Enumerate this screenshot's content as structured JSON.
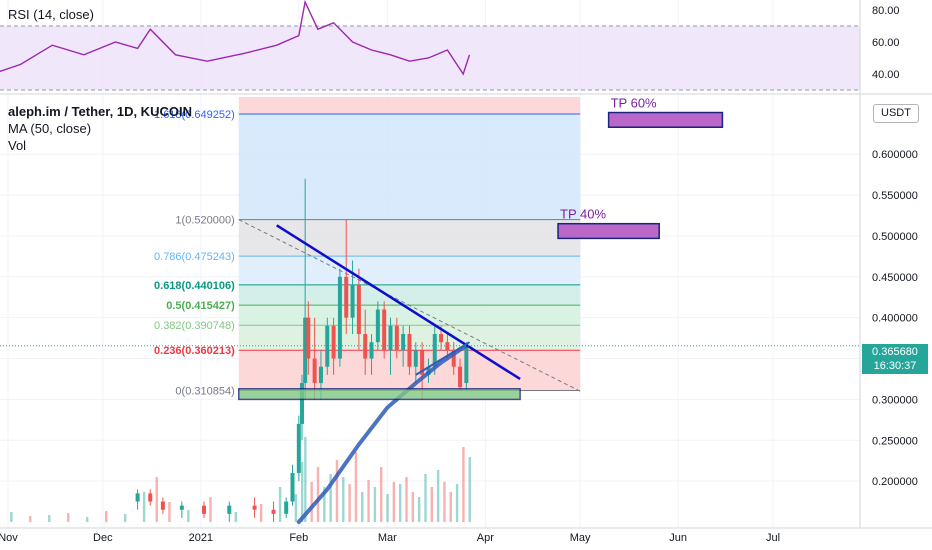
{
  "chart": {
    "symbol_title": "aleph.im / Tether, 1D, KUCOIN",
    "ma_label": "MA (50, close)",
    "vol_label": "Vol",
    "rsi_label": "RSI (14, close)",
    "currency": "USDT",
    "last_price": "0.365680",
    "countdown": "16:30:37",
    "colors": {
      "up": "#26a69a",
      "down": "#ef5350",
      "ma": "#2962ff",
      "rsi": "#9c27b0",
      "trendline": "#0d0dcc",
      "target_box": "#ba68c8",
      "support_box": "#81c784"
    }
  },
  "chart_data": [
    {
      "type": "line",
      "name": "RSI (14, close)",
      "ylim": [
        30,
        85
      ],
      "ticks": [
        80.0,
        60.0,
        40.0
      ],
      "tick_labels": [
        "80.00",
        "60.00",
        "40.00"
      ],
      "bands": [
        30,
        70
      ],
      "x_dates": [
        "2020-10-24",
        "2020-11-05",
        "2020-11-15",
        "2020-11-25",
        "2020-12-05",
        "2020-12-12",
        "2020-12-16",
        "2020-12-24",
        "2021-01-03",
        "2021-01-15",
        "2021-01-25",
        "2021-02-01",
        "2021-02-03",
        "2021-02-07",
        "2021-02-12",
        "2021-02-18",
        "2021-02-24",
        "2021-03-02",
        "2021-03-08",
        "2021-03-14",
        "2021-03-20",
        "2021-03-25",
        "2021-03-27"
      ],
      "values": [
        38,
        46,
        58,
        52,
        60,
        56,
        68,
        52,
        48,
        53,
        58,
        64,
        85,
        68,
        72,
        60,
        55,
        52,
        48,
        50,
        55,
        40,
        52
      ]
    },
    {
      "type": "candlestick",
      "name": "aleph.im / Tether, 1D, KUCOIN",
      "y_scale": "linear",
      "ylim": [
        0.15,
        0.67
      ],
      "y_ticks": [
        0.2,
        0.25,
        0.3,
        0.35,
        0.4,
        0.45,
        0.5,
        0.55,
        0.6
      ],
      "y_tick_labels": [
        "0.200000",
        "0.250000",
        "0.300000",
        "0.350000",
        "0.400000",
        "0.450000",
        "0.500000",
        "0.550000",
        "0.600000"
      ],
      "x_ticks": [
        "2020-11-01",
        "2020-12-01",
        "2021-01-01",
        "2021-02-01",
        "2021-03-01",
        "2021-04-01",
        "2021-05-01",
        "2021-06-01",
        "2021-07-01"
      ],
      "x_tick_labels": [
        "Nov",
        "Dec",
        "2021",
        "Feb",
        "Mar",
        "Apr",
        "May",
        "Jun",
        "Jul"
      ],
      "ohlc": [
        {
          "date": "2020-12-12",
          "o": 0.175,
          "h": 0.19,
          "l": 0.165,
          "c": 0.185
        },
        {
          "date": "2020-12-16",
          "o": 0.185,
          "h": 0.19,
          "l": 0.17,
          "c": 0.175
        },
        {
          "date": "2020-12-20",
          "o": 0.175,
          "h": 0.18,
          "l": 0.16,
          "c": 0.165
        },
        {
          "date": "2020-12-26",
          "o": 0.165,
          "h": 0.175,
          "l": 0.155,
          "c": 0.17
        },
        {
          "date": "2021-01-02",
          "o": 0.17,
          "h": 0.175,
          "l": 0.155,
          "c": 0.16
        },
        {
          "date": "2021-01-10",
          "o": 0.16,
          "h": 0.175,
          "l": 0.15,
          "c": 0.17
        },
        {
          "date": "2021-01-18",
          "o": 0.17,
          "h": 0.18,
          "l": 0.155,
          "c": 0.165
        },
        {
          "date": "2021-01-24",
          "o": 0.165,
          "h": 0.175,
          "l": 0.15,
          "c": 0.16
        },
        {
          "date": "2021-01-28",
          "o": 0.16,
          "h": 0.18,
          "l": 0.155,
          "c": 0.175
        },
        {
          "date": "2021-01-30",
          "o": 0.175,
          "h": 0.22,
          "l": 0.17,
          "c": 0.21
        },
        {
          "date": "2021-02-01",
          "o": 0.21,
          "h": 0.28,
          "l": 0.2,
          "c": 0.27
        },
        {
          "date": "2021-02-02",
          "o": 0.27,
          "h": 0.33,
          "l": 0.25,
          "c": 0.32
        },
        {
          "date": "2021-02-03",
          "o": 0.32,
          "h": 0.57,
          "l": 0.3,
          "c": 0.4
        },
        {
          "date": "2021-02-04",
          "o": 0.4,
          "h": 0.42,
          "l": 0.33,
          "c": 0.35
        },
        {
          "date": "2021-02-06",
          "o": 0.35,
          "h": 0.4,
          "l": 0.3,
          "c": 0.32
        },
        {
          "date": "2021-02-08",
          "o": 0.32,
          "h": 0.36,
          "l": 0.3,
          "c": 0.34
        },
        {
          "date": "2021-02-10",
          "o": 0.34,
          "h": 0.4,
          "l": 0.33,
          "c": 0.39
        },
        {
          "date": "2021-02-12",
          "o": 0.39,
          "h": 0.4,
          "l": 0.33,
          "c": 0.35
        },
        {
          "date": "2021-02-14",
          "o": 0.35,
          "h": 0.46,
          "l": 0.34,
          "c": 0.45
        },
        {
          "date": "2021-02-16",
          "o": 0.45,
          "h": 0.52,
          "l": 0.38,
          "c": 0.4
        },
        {
          "date": "2021-02-18",
          "o": 0.4,
          "h": 0.47,
          "l": 0.38,
          "c": 0.44
        },
        {
          "date": "2021-02-20",
          "o": 0.44,
          "h": 0.46,
          "l": 0.36,
          "c": 0.38
        },
        {
          "date": "2021-02-22",
          "o": 0.38,
          "h": 0.41,
          "l": 0.33,
          "c": 0.35
        },
        {
          "date": "2021-02-24",
          "o": 0.35,
          "h": 0.38,
          "l": 0.33,
          "c": 0.37
        },
        {
          "date": "2021-02-26",
          "o": 0.37,
          "h": 0.42,
          "l": 0.36,
          "c": 0.41
        },
        {
          "date": "2021-02-28",
          "o": 0.41,
          "h": 0.42,
          "l": 0.35,
          "c": 0.36
        },
        {
          "date": "2021-03-02",
          "o": 0.36,
          "h": 0.4,
          "l": 0.33,
          "c": 0.39
        },
        {
          "date": "2021-03-04",
          "o": 0.39,
          "h": 0.4,
          "l": 0.35,
          "c": 0.36
        },
        {
          "date": "2021-03-06",
          "o": 0.36,
          "h": 0.39,
          "l": 0.34,
          "c": 0.38
        },
        {
          "date": "2021-03-08",
          "o": 0.38,
          "h": 0.39,
          "l": 0.33,
          "c": 0.34
        },
        {
          "date": "2021-03-10",
          "o": 0.34,
          "h": 0.37,
          "l": 0.32,
          "c": 0.36
        },
        {
          "date": "2021-03-12",
          "o": 0.36,
          "h": 0.37,
          "l": 0.3,
          "c": 0.33
        },
        {
          "date": "2021-03-14",
          "o": 0.33,
          "h": 0.35,
          "l": 0.32,
          "c": 0.34
        },
        {
          "date": "2021-03-16",
          "o": 0.34,
          "h": 0.39,
          "l": 0.33,
          "c": 0.38
        },
        {
          "date": "2021-03-18",
          "o": 0.38,
          "h": 0.39,
          "l": 0.36,
          "c": 0.37
        },
        {
          "date": "2021-03-20",
          "o": 0.37,
          "h": 0.38,
          "l": 0.35,
          "c": 0.36
        },
        {
          "date": "2021-03-22",
          "o": 0.36,
          "h": 0.37,
          "l": 0.33,
          "c": 0.34
        },
        {
          "date": "2021-03-24",
          "o": 0.34,
          "h": 0.35,
          "l": 0.31,
          "c": 0.315
        },
        {
          "date": "2021-03-26",
          "o": 0.32,
          "h": 0.37,
          "l": 0.31,
          "c": 0.366
        }
      ],
      "ma_50": {
        "name": "MA (50, close)",
        "x_dates": [
          "2021-02-01",
          "2021-02-10",
          "2021-02-20",
          "2021-03-01",
          "2021-03-10",
          "2021-03-18",
          "2021-03-26"
        ],
        "values": [
          0.15,
          0.19,
          0.245,
          0.29,
          0.32,
          0.345,
          0.366
        ]
      },
      "volume": {
        "name": "Vol",
        "dates": [
          "2020-10-26",
          "2020-11-02",
          "2020-11-08",
          "2020-11-14",
          "2020-11-20",
          "2020-11-26",
          "2020-12-02",
          "2020-12-08",
          "2020-12-14",
          "2020-12-18",
          "2020-12-22",
          "2020-12-28",
          "2021-01-04",
          "2021-01-12",
          "2021-01-20",
          "2021-01-26",
          "2021-01-31",
          "2021-02-02",
          "2021-02-03",
          "2021-02-05",
          "2021-02-07",
          "2021-02-09",
          "2021-02-11",
          "2021-02-13",
          "2021-02-15",
          "2021-02-17",
          "2021-02-19",
          "2021-02-21",
          "2021-02-23",
          "2021-02-25",
          "2021-02-27",
          "2021-03-01",
          "2021-03-03",
          "2021-03-05",
          "2021-03-07",
          "2021-03-09",
          "2021-03-11",
          "2021-03-13",
          "2021-03-15",
          "2021-03-17",
          "2021-03-19",
          "2021-03-21",
          "2021-03-23",
          "2021-03-25",
          "2021-03-27"
        ],
        "values": [
          8,
          10,
          6,
          7,
          9,
          5,
          11,
          8,
          30,
          45,
          20,
          12,
          25,
          10,
          18,
          35,
          28,
          60,
          85,
          40,
          55,
          35,
          48,
          62,
          45,
          38,
          70,
          30,
          42,
          35,
          55,
          28,
          40,
          38,
          45,
          30,
          25,
          48,
          35,
          52,
          40,
          30,
          38,
          75,
          65
        ],
        "up": [
          false,
          true,
          false,
          true,
          false,
          true,
          false,
          true,
          true,
          false,
          false,
          true,
          false,
          true,
          false,
          true,
          true,
          true,
          true,
          false,
          false,
          true,
          true,
          false,
          true,
          false,
          false,
          true,
          false,
          true,
          false,
          true,
          false,
          true,
          false,
          false,
          true,
          true,
          false,
          true,
          false,
          false,
          true,
          false,
          true
        ]
      }
    }
  ],
  "fib": {
    "levels": [
      {
        "ratio": "0",
        "value": 0.310854,
        "label": "0(0.310854)",
        "color": "#787b86"
      },
      {
        "ratio": "0.236",
        "value": 0.360213,
        "label": "0.236(0.360213)",
        "color": "#f23645"
      },
      {
        "ratio": "0.382",
        "value": 0.390748,
        "label": "0.382(0.390748)",
        "color": "#81c784"
      },
      {
        "ratio": "0.5",
        "value": 0.415427,
        "label": "0.5(0.415427)",
        "color": "#4caf50"
      },
      {
        "ratio": "0.618",
        "value": 0.440106,
        "label": "0.618(0.440106)",
        "color": "#089981"
      },
      {
        "ratio": "0.786",
        "value": 0.475243,
        "label": "0.786(0.475243)",
        "color": "#64b5f6"
      },
      {
        "ratio": "1",
        "value": 0.52,
        "label": "1(0.520000)",
        "color": "#787b86"
      },
      {
        "ratio": "1.618",
        "value": 0.649252,
        "label": "1.618(0.649252)",
        "color": "#2962ff"
      }
    ],
    "start_date": "2021-01-13",
    "end_date": "2021-05-01"
  },
  "annotations": {
    "tp40": {
      "label": "TP 40%",
      "price_low": 0.497,
      "price_high": 0.515,
      "start_date": "2021-04-24",
      "end_date": "2021-05-26"
    },
    "tp60": {
      "label": "TP 60%",
      "price_low": 0.633,
      "price_high": 0.651,
      "start_date": "2021-05-10",
      "end_date": "2021-06-15"
    },
    "support": {
      "price_low": 0.3,
      "price_high": 0.313,
      "start_date": "2021-01-13",
      "end_date": "2021-04-12"
    },
    "descending_trendline": {
      "from": {
        "date": "2021-01-25",
        "price": 0.513
      },
      "to": {
        "date": "2021-04-12",
        "price": 0.325
      }
    },
    "ascending_trendline": {
      "from": {
        "date": "2021-03-10",
        "price": 0.33
      },
      "to": {
        "date": "2021-03-27",
        "price": 0.37
      }
    },
    "dashed_trendline": {
      "from": {
        "date": "2021-01-13",
        "price": 0.52
      },
      "to": {
        "date": "2021-05-01",
        "price": 0.31
      }
    }
  }
}
